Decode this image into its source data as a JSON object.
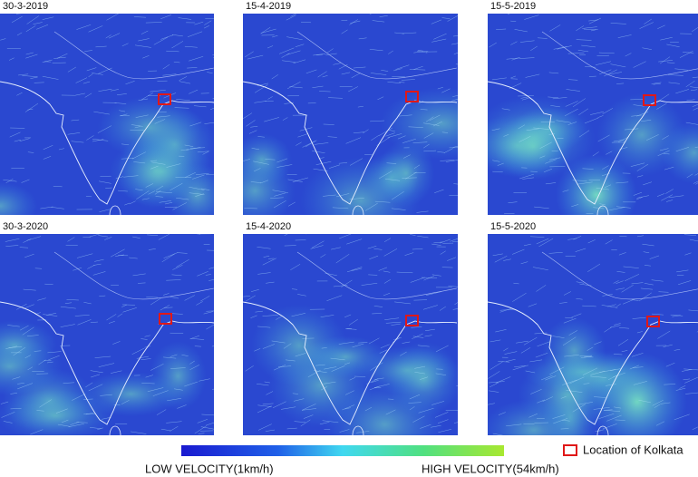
{
  "panels": [
    {
      "date": "30-3-2019"
    },
    {
      "date": "15-4-2019"
    },
    {
      "date": "15-5-2019"
    },
    {
      "date": "30-3-2020"
    },
    {
      "date": "15-4-2020"
    },
    {
      "date": "15-5-2020"
    }
  ],
  "legend": {
    "low": "LOW VELOCITY(1km/h)",
    "high": "HIGH VELOCITY(54km/h)",
    "marker": "Location of Kolkata"
  }
}
